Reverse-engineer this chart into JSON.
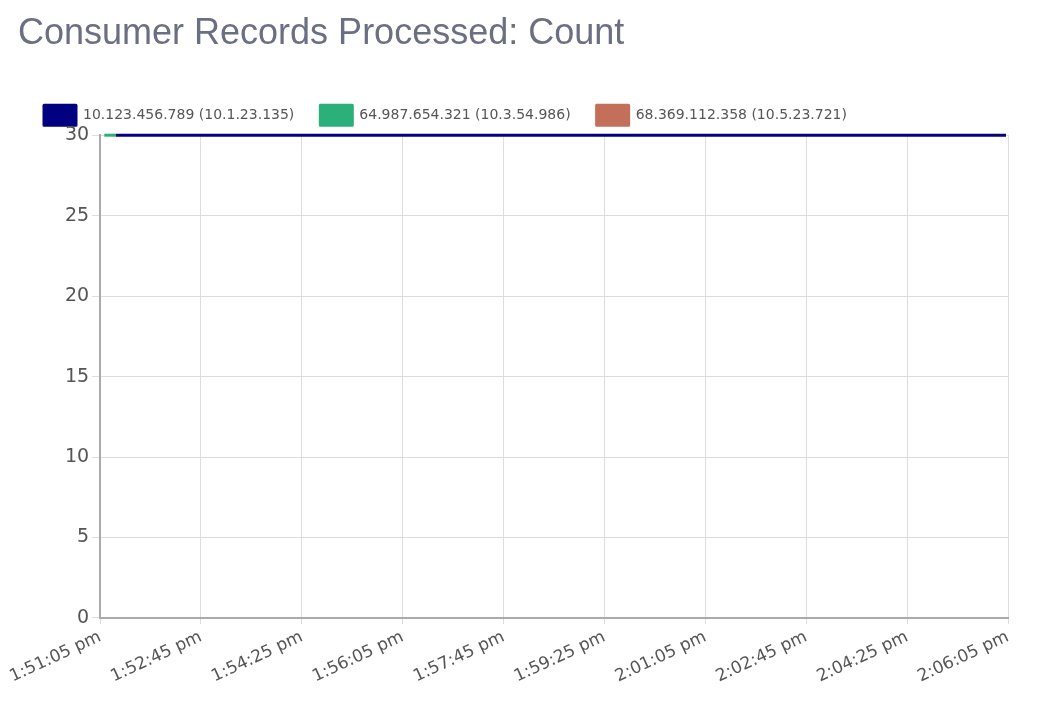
{
  "chart_data": {
    "type": "line",
    "title": "Consumer Records Processed: Count",
    "xlim": [
      13.85139,
      14.10139
    ],
    "xticks": [
      {
        "value": 13.85139,
        "label": "1:51:05 pm"
      },
      {
        "value": 13.87917,
        "label": "1:52:45 pm"
      },
      {
        "value": 13.90694,
        "label": "1:54:25 pm"
      },
      {
        "value": 13.93472,
        "label": "1:56:05 pm"
      },
      {
        "value": 13.9625,
        "label": "1:57:45 pm"
      },
      {
        "value": 13.99028,
        "label": "1:59:25 pm"
      },
      {
        "value": 14.01806,
        "label": "2:01:05 pm"
      },
      {
        "value": 14.04583,
        "label": "2:02:45 pm"
      },
      {
        "value": 14.07361,
        "label": "2:04:25 pm"
      },
      {
        "value": 14.10139,
        "label": "2:06:05 pm"
      }
    ],
    "ylim": [
      0,
      30
    ],
    "yticks": [
      0,
      5,
      10,
      15,
      20,
      25,
      30
    ],
    "grid": true,
    "legend": "top",
    "marker": "none",
    "line_style": "solid",
    "series": [
      {
        "name": "10.123.456.789 (10.1.23.135)",
        "color": "#000080",
        "x": [
          13.85572,
          14.10083
        ],
        "values": [
          30,
          30
        ]
      },
      {
        "name": "64.987.654.321 (10.3.54.986)",
        "color": "#2bb07a",
        "x": [
          13.85256,
          13.85572
        ],
        "values": [
          30,
          30
        ]
      },
      {
        "name": "68.369.112.358 (10.5.23.721)",
        "color": "#c46f5a"
      }
    ]
  }
}
